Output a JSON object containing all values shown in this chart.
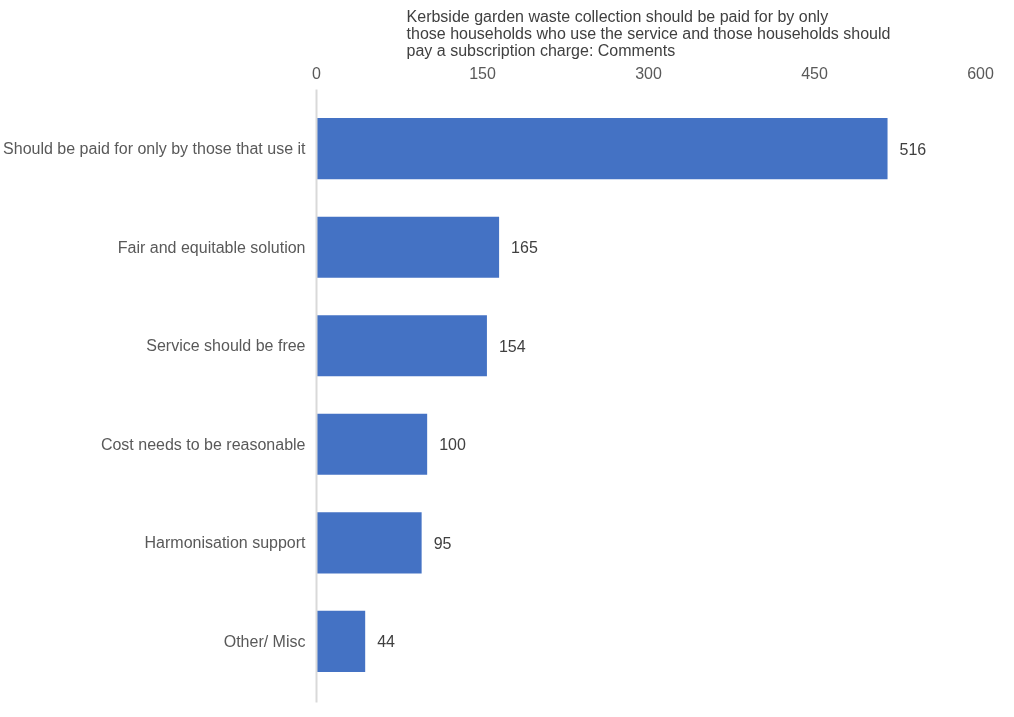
{
  "chart_data": {
    "type": "bar",
    "orientation": "horizontal",
    "title": "Kerbside garden waste collection should be paid for by only those households who use the service and those households should pay a subscription charge: Comments",
    "categories": [
      "Should be paid for only by those that use it",
      "Fair and equitable solution",
      "Service should be free",
      "Cost needs to be reasonable",
      "Harmonisation support",
      "Other/ Misc"
    ],
    "values": [
      516,
      165,
      154,
      100,
      95,
      44
    ],
    "color": "#4472c4",
    "xlim": [
      0,
      600
    ],
    "xticks": [
      0,
      150,
      300,
      450,
      600
    ],
    "grid": false,
    "data_labels": true
  }
}
